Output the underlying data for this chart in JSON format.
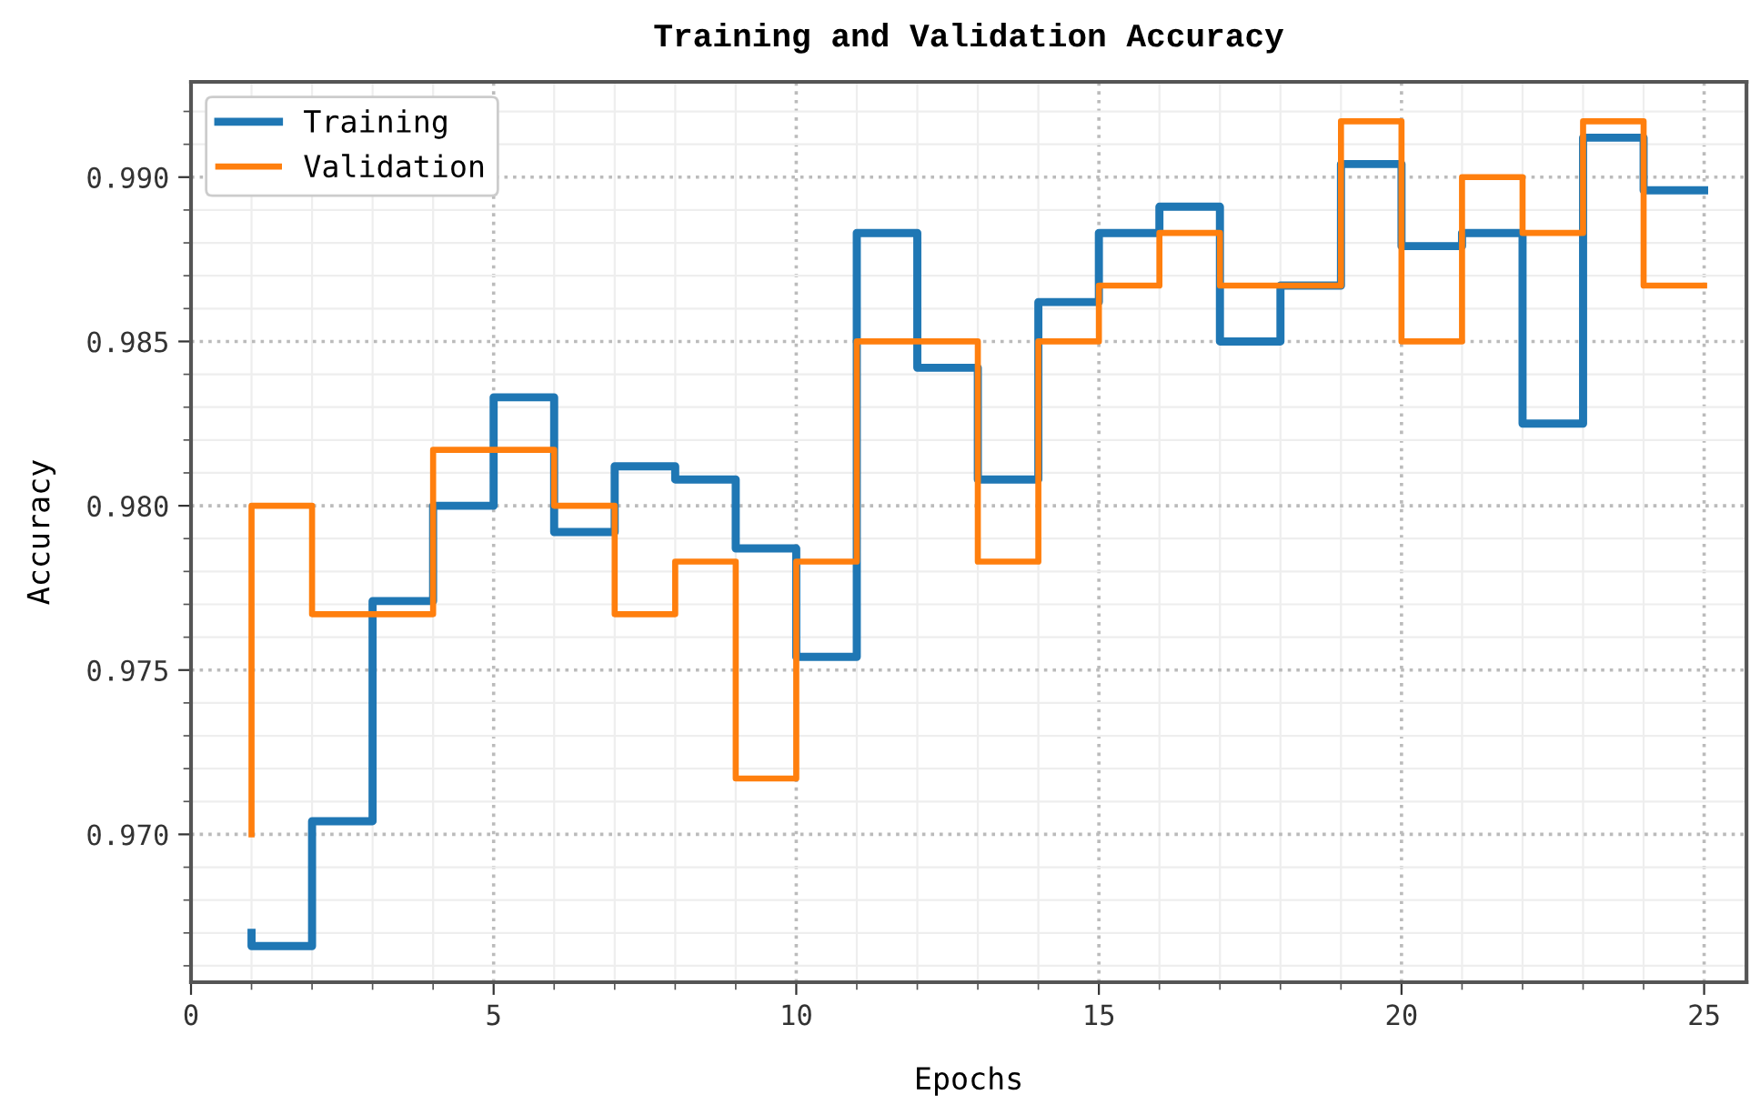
{
  "chart_data": {
    "type": "step",
    "title": "Training and Validation Accuracy",
    "xlabel": "Epochs",
    "ylabel": "Accuracy",
    "x": [
      1,
      2,
      3,
      4,
      5,
      6,
      7,
      8,
      9,
      10,
      11,
      12,
      13,
      14,
      15,
      16,
      17,
      18,
      19,
      20,
      21,
      22,
      23,
      24,
      25
    ],
    "series": [
      {
        "name": "Training",
        "color": "#1f77b4",
        "values": [
          0.967,
          0.9666,
          0.9704,
          0.9771,
          0.98,
          0.9833,
          0.9792,
          0.9812,
          0.9808,
          0.9787,
          0.9754,
          0.9883,
          0.9842,
          0.9808,
          0.9862,
          0.9883,
          0.9891,
          0.985,
          0.9867,
          0.9904,
          0.9879,
          0.9883,
          0.9825,
          0.9912,
          0.9896
        ]
      },
      {
        "name": "Validation",
        "color": "#ff7f0e",
        "values": [
          0.97,
          0.98,
          0.9767,
          0.9767,
          0.9817,
          0.9817,
          0.98,
          0.9767,
          0.9783,
          0.9717,
          0.9783,
          0.985,
          0.985,
          0.9783,
          0.985,
          0.9867,
          0.9883,
          0.9867,
          0.9867,
          0.9917,
          0.985,
          0.99,
          0.9883,
          0.9917,
          0.9867
        ]
      }
    ],
    "xlim": [
      0,
      25.7
    ],
    "ylim": [
      0.9655,
      0.9929
    ],
    "xticks": [
      0,
      5,
      10,
      15,
      20,
      25
    ],
    "yticks": [
      {
        "value": 0.97,
        "label": "0.970"
      },
      0.975,
      {
        "value": 0.98,
        "label": "0.980"
      },
      0.985,
      {
        "value": 0.99,
        "label": "0.990"
      }
    ],
    "grid": true,
    "legend": "top left",
    "line_style": "solid",
    "marker": "none"
  }
}
